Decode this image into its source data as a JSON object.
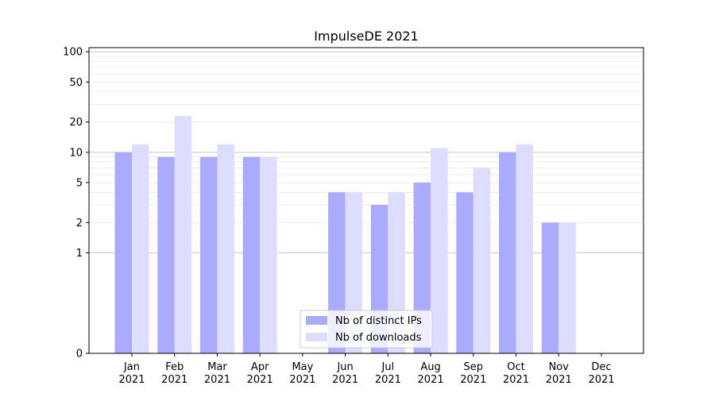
{
  "chart_data": {
    "type": "bar",
    "title": "ImpulseDE 2021",
    "xlabel": "",
    "ylabel": "",
    "yscale": "symlog",
    "ylim": [
      0,
      110
    ],
    "yticks": [
      0,
      1,
      2,
      5,
      10,
      20,
      50,
      100
    ],
    "grid": true,
    "legend_position": "lower-center",
    "categories": [
      [
        "Jan",
        "2021"
      ],
      [
        "Feb",
        "2021"
      ],
      [
        "Mar",
        "2021"
      ],
      [
        "Apr",
        "2021"
      ],
      [
        "May",
        "2021"
      ],
      [
        "Jun",
        "2021"
      ],
      [
        "Jul",
        "2021"
      ],
      [
        "Aug",
        "2021"
      ],
      [
        "Sep",
        "2021"
      ],
      [
        "Oct",
        "2021"
      ],
      [
        "Nov",
        "2021"
      ],
      [
        "Dec",
        "2021"
      ]
    ],
    "series": [
      {
        "name": "Nb of distinct IPs",
        "color": "#aaaaff",
        "values": [
          10,
          9,
          9,
          9,
          0,
          4,
          3,
          5,
          4,
          10,
          2,
          0
        ]
      },
      {
        "name": "Nb of downloads",
        "color": "#ddddff",
        "values": [
          12,
          23,
          12,
          9,
          0,
          4,
          4,
          11,
          7,
          12,
          2,
          0
        ]
      }
    ]
  }
}
